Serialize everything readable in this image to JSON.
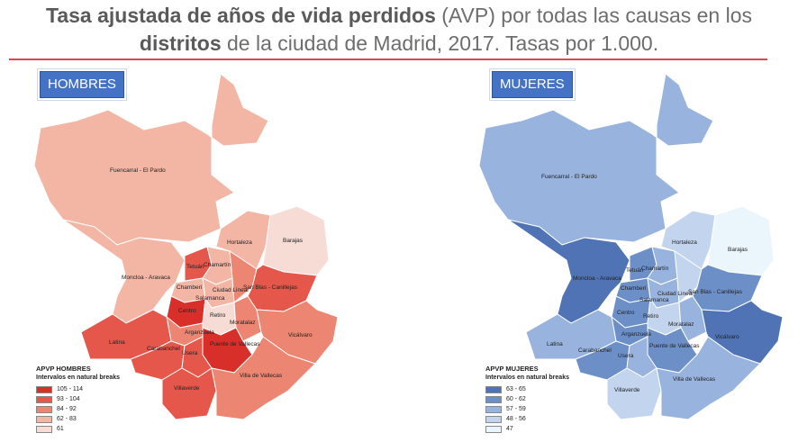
{
  "title": {
    "part1": "Tasa ajustada de años de vida perdidos",
    "part2": " (AVP) por todas las causas en los ",
    "part3": "distritos",
    "part4": " de la ciudad de Madrid, 2017. Tasas por 1.000."
  },
  "maps": [
    {
      "badge": "HOMBRES",
      "legend_title": "APVP HOMBRES",
      "legend_subtitle": "Intervalos en natural breaks",
      "legend": [
        {
          "label": "105 - 114",
          "color": "#d92f2a"
        },
        {
          "label": "93 - 104",
          "color": "#e4574a"
        },
        {
          "label": "84 - 92",
          "color": "#ec8571"
        },
        {
          "label": "62 - 83",
          "color": "#f3b6a4"
        },
        {
          "label": "61",
          "color": "#f6dcd4"
        }
      ],
      "districts": {
        "fuencarral": "Fuencarral - El Pardo",
        "hortaleza": "Hortaleza",
        "barajas": "Barajas",
        "tetuan": "Tetuán",
        "chamartin": "Chamartín",
        "moncloa": "Moncloa - Aravaca",
        "chamberi": "Chamberí",
        "ciudadlineal": "Ciudad Lineal",
        "sanblas": "San Blas - Canillejas",
        "salamanca": "Salamanca",
        "centro": "Centro",
        "retiro": "Retiro",
        "moratalaz": "Moratalaz",
        "arganzuela": "Arganzuela",
        "latina": "Latina",
        "carabanchel": "Carabanchel",
        "puente": "Puente de Vallecas",
        "vicalvaro": "Vicálvaro",
        "usera": "Usera",
        "villaverde": "Villaverde",
        "villavallecas": "Villa de Vallecas"
      },
      "fill_class": {
        "fuencarral": 3,
        "hortaleza": 3,
        "barajas": 4,
        "tetuan": 1,
        "chamartin": 3,
        "moncloa": 3,
        "chamberi": 3,
        "ciudadlineal": 2,
        "sanblas": 1,
        "salamanca": 3,
        "centro": 0,
        "retiro": 4,
        "moratalaz": 2,
        "arganzuela": 2,
        "latina": 1,
        "carabanchel": 1,
        "puente": 0,
        "vicalvaro": 2,
        "usera": 1,
        "villaverde": 1,
        "villavallecas": 2
      }
    },
    {
      "badge": "MUJERES",
      "legend_title": "APVP MUJERES",
      "legend_subtitle": "Intervalos en natural breaks",
      "legend": [
        {
          "label": "63 - 65",
          "color": "#4f73b4"
        },
        {
          "label": "60 - 62",
          "color": "#6d8fc8"
        },
        {
          "label": "57 - 59",
          "color": "#98b3dd"
        },
        {
          "label": "48 - 56",
          "color": "#c3d5ee"
        },
        {
          "label": "47",
          "color": "#eaf6fc"
        }
      ],
      "districts": {
        "fuencarral": "Fuencarral - El Pardo",
        "hortaleza": "Hortaleza",
        "barajas": "Barajas",
        "tetuan": "Tetuán",
        "chamartin": "Chamartín",
        "moncloa": "Moncloa - Aravaca",
        "chamberi": "Chamberí",
        "ciudadlineal": "Ciudad Lineal",
        "sanblas": "San Blas - Canillejas",
        "salamanca": "Salamanca",
        "centro": "Centro",
        "retiro": "Retiro",
        "moratalaz": "Moratalaz",
        "arganzuela": "Arganzuela",
        "latina": "Latina",
        "carabanchel": "Carabanchel",
        "puente": "Puente de Vallecas",
        "vicalvaro": "Vicálvaro",
        "usera": "Usera",
        "villaverde": "Villaverde",
        "villavallecas": "Villa de Vallecas"
      },
      "fill_class": {
        "fuencarral": 2,
        "hortaleza": 3,
        "barajas": 4,
        "tetuan": 1,
        "chamartin": 2,
        "moncloa": 0,
        "chamberi": 1,
        "ciudadlineal": 3,
        "sanblas": 1,
        "salamanca": 2,
        "centro": 1,
        "retiro": 3,
        "moratalaz": 2,
        "arganzuela": 1,
        "latina": 2,
        "carabanchel": 1,
        "puente": 1,
        "vicalvaro": 0,
        "usera": 2,
        "villaverde": 3,
        "villavallecas": 2
      }
    }
  ]
}
